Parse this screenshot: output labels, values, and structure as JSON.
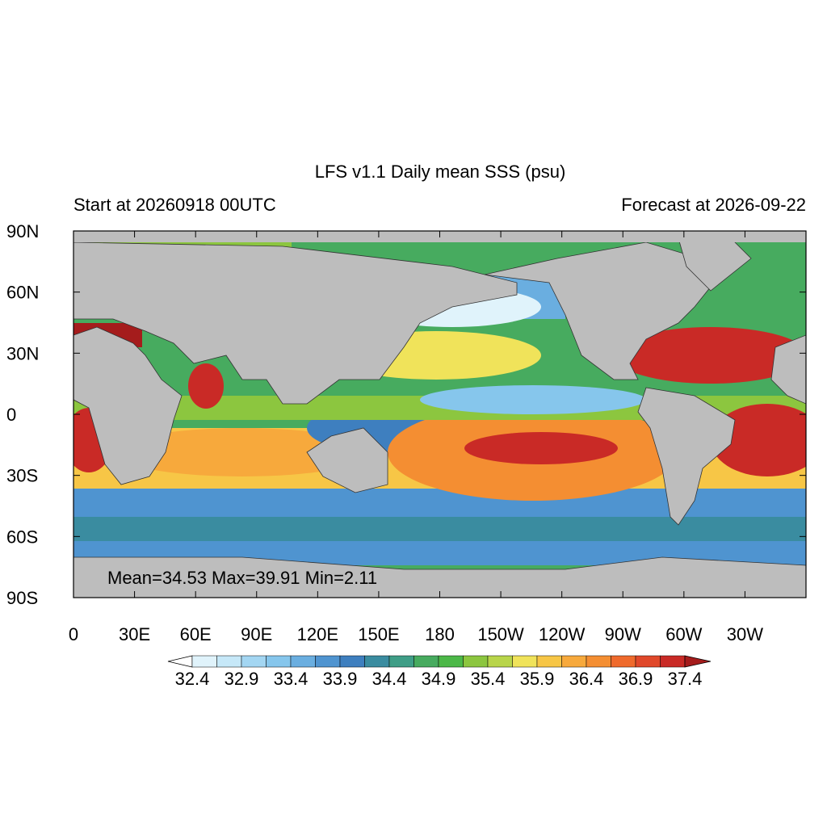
{
  "map": {
    "title": "LFS v1.1 Daily mean SSS (psu)",
    "subtitle_left": "Start at 20260918 00UTC",
    "subtitle_right": "Forecast at 2026-09-22",
    "lat_ticks": [
      "90N",
      "60N",
      "30N",
      "0",
      "30S",
      "60S",
      "90S"
    ],
    "lon_ticks": [
      "0",
      "30E",
      "60E",
      "90E",
      "120E",
      "150E",
      "180",
      "150W",
      "120W",
      "90W",
      "60W",
      "30W"
    ],
    "stats": "Mean=34.53  Max=39.91  Min=2.11",
    "colorbar": {
      "levels": [
        32.4,
        32.9,
        33.4,
        33.9,
        34.4,
        34.9,
        35.4,
        35.9,
        36.4,
        36.9,
        37.4
      ],
      "below_color": "#ffffff",
      "above_color": "#a51c1c",
      "colors": [
        "#e0f3fb",
        "#c6e8f8",
        "#a3d6f2",
        "#86c6ec",
        "#6aaee0",
        "#4f94d0",
        "#3e7fbf",
        "#3a8ca0",
        "#3f9e87",
        "#47ab5f",
        "#4cb848",
        "#8cc63f",
        "#b8d54a",
        "#f0e35a",
        "#f7c646",
        "#f7a93c",
        "#f48e32",
        "#ef6a2c",
        "#e0482a",
        "#c92a26"
      ]
    }
  }
}
